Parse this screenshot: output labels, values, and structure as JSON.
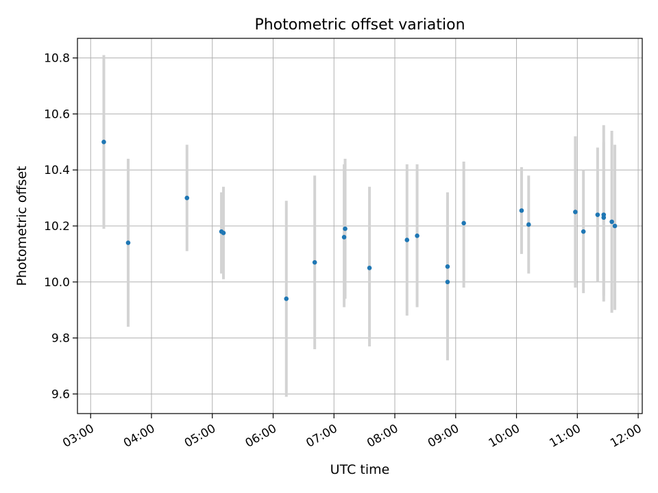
{
  "chart_data": {
    "type": "scatter",
    "title": "Photometric offset variation",
    "xlabel": "UTC time",
    "ylabel": "Photometric offset",
    "xlim": [
      "02:47",
      "12:04"
    ],
    "ylim": [
      9.53,
      10.87
    ],
    "xticks": [
      "03:00",
      "04:00",
      "05:00",
      "06:00",
      "07:00",
      "08:00",
      "09:00",
      "10:00",
      "11:00",
      "12:00"
    ],
    "yticks": [
      9.6,
      9.8,
      10.0,
      10.2,
      10.4,
      10.6,
      10.8
    ],
    "grid": true,
    "point_color": "#1f77b4",
    "errorbar_color": "#d3d3d3",
    "points": [
      {
        "x": "03:13",
        "y": 10.5,
        "ylow": 10.19,
        "yhigh": 10.81
      },
      {
        "x": "03:37",
        "y": 10.14,
        "ylow": 9.84,
        "yhigh": 10.44
      },
      {
        "x": "04:35",
        "y": 10.3,
        "ylow": 10.11,
        "yhigh": 10.49
      },
      {
        "x": "05:09",
        "y": 10.18,
        "ylow": 10.03,
        "yhigh": 10.32
      },
      {
        "x": "05:11",
        "y": 10.175,
        "ylow": 10.01,
        "yhigh": 10.34
      },
      {
        "x": "06:13",
        "y": 9.94,
        "ylow": 9.59,
        "yhigh": 10.29
      },
      {
        "x": "06:41",
        "y": 10.07,
        "ylow": 9.76,
        "yhigh": 10.38
      },
      {
        "x": "07:10",
        "y": 10.16,
        "ylow": 9.91,
        "yhigh": 10.42
      },
      {
        "x": "07:11",
        "y": 10.19,
        "ylow": 9.94,
        "yhigh": 10.44
      },
      {
        "x": "07:35",
        "y": 10.05,
        "ylow": 9.77,
        "yhigh": 10.34
      },
      {
        "x": "08:12",
        "y": 10.15,
        "ylow": 9.88,
        "yhigh": 10.42
      },
      {
        "x": "08:22",
        "y": 10.165,
        "ylow": 9.91,
        "yhigh": 10.42
      },
      {
        "x": "08:52",
        "y": 10.055,
        "ylow": 9.79,
        "yhigh": 10.32
      },
      {
        "x": "08:52",
        "y": 10.0,
        "ylow": 9.72,
        "yhigh": 10.28
      },
      {
        "x": "09:08",
        "y": 10.21,
        "ylow": 9.98,
        "yhigh": 10.43
      },
      {
        "x": "10:05",
        "y": 10.255,
        "ylow": 10.1,
        "yhigh": 10.41
      },
      {
        "x": "10:12",
        "y": 10.205,
        "ylow": 10.03,
        "yhigh": 10.38
      },
      {
        "x": "10:58",
        "y": 10.25,
        "ylow": 9.98,
        "yhigh": 10.52
      },
      {
        "x": "11:06",
        "y": 10.18,
        "ylow": 9.96,
        "yhigh": 10.4
      },
      {
        "x": "11:20",
        "y": 10.24,
        "ylow": 10.0,
        "yhigh": 10.48
      },
      {
        "x": "11:26",
        "y": 10.24,
        "ylow": 9.93,
        "yhigh": 10.56
      },
      {
        "x": "11:26",
        "y": 10.23,
        "ylow": 9.95,
        "yhigh": 10.5
      },
      {
        "x": "11:34",
        "y": 10.215,
        "ylow": 9.89,
        "yhigh": 10.54
      },
      {
        "x": "11:37",
        "y": 10.2,
        "ylow": 9.9,
        "yhigh": 10.49
      }
    ]
  }
}
